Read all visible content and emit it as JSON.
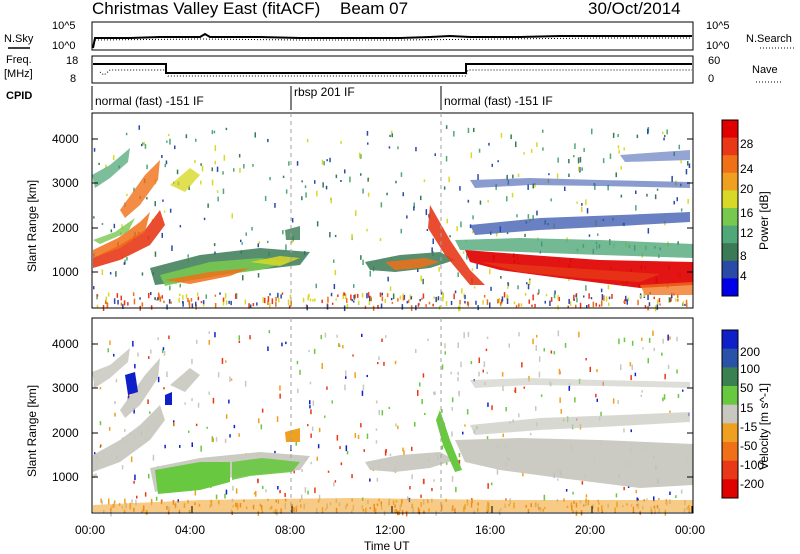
{
  "header": {
    "station": "Christmas Valley East (fitACF)",
    "beam": "Beam 07",
    "date": "30/Oct/2014"
  },
  "panels": {
    "noise": {
      "left_label": "N.Sky",
      "left_ticks": [
        "10^5",
        "10^0"
      ],
      "right_ticks": [
        "10^5",
        "10^0"
      ],
      "right_label": "N.Search"
    },
    "freq": {
      "left_label_1": "Freq.",
      "left_label_2": "[MHz]",
      "left_ticks": [
        "18",
        "8"
      ],
      "right_ticks": [
        "60",
        "0"
      ],
      "right_label": "Nave"
    },
    "cpid": {
      "label": "CPID",
      "segments": [
        "normal (fast) -151 IF",
        "rbsp 201 IF",
        "normal (fast) -151 IF"
      ]
    }
  },
  "chart_data": [
    {
      "type": "heatmap",
      "title": "",
      "xlabel": "",
      "ylabel": "Slant Range [km]",
      "xlim": [
        "00:00",
        "24:00"
      ],
      "ylim": [
        200,
        4600
      ],
      "yticks": [
        1000,
        2000,
        3000,
        4000
      ],
      "colorbar": {
        "label": "Power [dB]",
        "ticks": [
          4,
          8,
          12,
          16,
          20,
          24,
          28
        ],
        "colors": [
          "#0000e8",
          "#2a4aa8",
          "#3a7a54",
          "#50a878",
          "#78c850",
          "#d8d828",
          "#f0a020",
          "#f07018",
          "#e83818",
          "#e00000"
        ]
      }
    },
    {
      "type": "heatmap",
      "title": "",
      "xlabel": "Time UT",
      "ylabel": "Slant Range [km]",
      "xlim": [
        "00:00",
        "24:00"
      ],
      "ylim": [
        200,
        4600
      ],
      "xticks": [
        "00:00",
        "04:00",
        "08:00",
        "12:00",
        "16:00",
        "20:00",
        "00:00"
      ],
      "yticks": [
        1000,
        2000,
        3000,
        4000
      ],
      "colorbar": {
        "label": "Velocity [m s^-1]",
        "ticks": [
          200,
          100,
          50,
          15,
          -15,
          -50,
          -100,
          -200
        ],
        "colors": [
          "#1020c8",
          "#2a52a8",
          "#3a8050",
          "#68c840",
          "#c8c8c0",
          "#f0a020",
          "#f07018",
          "#e83818",
          "#e00000"
        ]
      }
    }
  ]
}
